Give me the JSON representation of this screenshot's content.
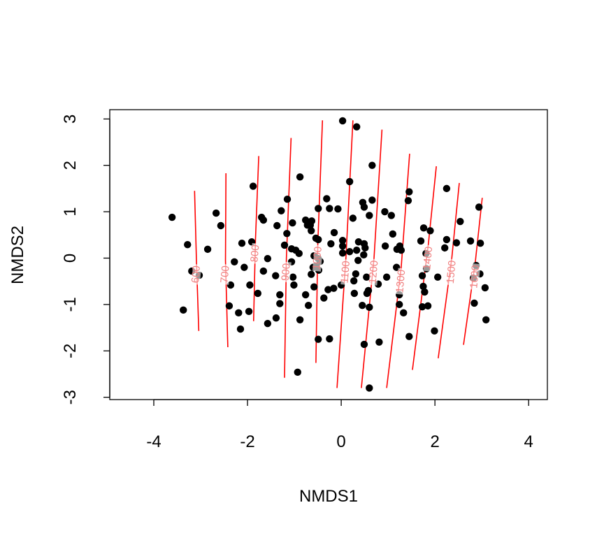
{
  "chart_data": {
    "type": "scatter",
    "xlabel": "NMDS1",
    "ylabel": "NMDS2",
    "xlim": [
      -4.94,
      4.4
    ],
    "ylim": [
      -3.05,
      3.2
    ],
    "xticks": [
      -4,
      -2,
      0,
      2,
      4
    ],
    "yticks": [
      -3,
      -2,
      -1,
      0,
      1,
      2,
      3
    ],
    "color": "#000000",
    "contour_color": "#ff0000",
    "contour_label_color": "#f08080",
    "x": [
      0.03,
      0.33,
      0.66,
      -0.88,
      -1.88,
      0.18,
      2.25,
      1.45,
      -3.61,
      -2.67,
      -2.57,
      -1.7,
      -1.66,
      -1.28,
      -1.15,
      -0.31,
      -0.25,
      -0.49,
      -0.07,
      0.46,
      0.49,
      0.66,
      0.25,
      0.6,
      0.93,
      1.07,
      1.43,
      2.94,
      2.54,
      1.76,
      1.9,
      2.25,
      2.46,
      2.21,
      2.76,
      2.97,
      2.88,
      2.96,
      3.07,
      3.09,
      2.84,
      2.82,
      1.7,
      1.81,
      1.82,
      1.73,
      1.75,
      1.78,
      1.73,
      1.85,
      2.06,
      1.99,
      1.45,
      1.33,
      1.24,
      1.24,
      1.18,
      1.19,
      1.25,
      1.28,
      1.1,
      0.94,
      0.97,
      0.79,
      0.58,
      0.55,
      0.54,
      0.51,
      0.49,
      0.37,
      0.33,
      0.48,
      0.36,
      0.27,
      0.28,
      0.45,
      0.6,
      0.49,
      0.81,
      0.6,
      0.03,
      0.03,
      0.03,
      -0.15,
      -0.22,
      0.0,
      -0.16,
      -0.49,
      -0.58,
      -0.54,
      -0.45,
      -0.6,
      -0.48,
      -0.64,
      -0.58,
      -0.37,
      -0.49,
      -0.54,
      -0.64,
      -0.66,
      -0.76,
      -0.72,
      -0.63,
      -0.97,
      -0.9,
      -1.06,
      -1.04,
      -1.21,
      -1.06,
      -1.03,
      -1.01,
      -0.76,
      -0.7,
      -0.88,
      -0.93,
      -1.31,
      -1.31,
      -1.39,
      -1.57,
      -1.66,
      -1.57,
      -1.4,
      -1.16,
      -1.37,
      -1.91,
      -2.12,
      -2.28,
      -2.07,
      -1.95,
      -1.78,
      -1.97,
      -2.19,
      -2.15,
      -2.39,
      -2.36,
      -3.28,
      -2.85,
      -3.19,
      -3.03,
      -3.37,
      -0.49,
      -0.25,
      -0.28,
      0.18,
      0.31
    ],
    "y": [
      2.96,
      2.83,
      2.0,
      1.75,
      1.55,
      1.65,
      1.5,
      1.43,
      0.88,
      0.97,
      0.7,
      0.88,
      0.82,
      1.02,
      1.27,
      1.28,
      1.07,
      1.07,
      1.06,
      1.2,
      1.1,
      1.25,
      0.86,
      0.92,
      1.0,
      0.92,
      1.24,
      1.1,
      0.79,
      0.65,
      0.59,
      0.4,
      0.33,
      0.22,
      0.37,
      0.32,
      -0.16,
      -0.34,
      -0.64,
      -1.33,
      -0.97,
      -0.43,
      0.37,
      0.1,
      -0.23,
      -0.38,
      -0.61,
      -0.73,
      -1.05,
      -1.03,
      -0.41,
      -1.57,
      -1.69,
      -1.18,
      -0.79,
      -1.0,
      -0.2,
      0.19,
      0.26,
      0.17,
      0.52,
      0.26,
      -0.41,
      -0.56,
      -0.7,
      -0.76,
      -0.41,
      0.22,
      0.31,
      0.35,
      0.17,
      0.07,
      -0.05,
      -0.49,
      -0.76,
      -1.02,
      -1.06,
      -1.86,
      -1.81,
      -2.8,
      0.38,
      0.11,
      0.26,
      0.55,
      0.31,
      -0.58,
      -0.65,
      -0.01,
      0.05,
      -0.17,
      -0.07,
      -0.2,
      -0.26,
      -0.35,
      -0.62,
      -0.86,
      0.4,
      0.43,
      0.59,
      0.71,
      0.82,
      0.71,
      0.8,
      0.17,
      0.1,
      0.2,
      0.76,
      0.28,
      -0.08,
      -0.41,
      -0.58,
      -0.79,
      -1.02,
      -1.33,
      -2.46,
      -0.79,
      -0.98,
      -1.29,
      -1.41,
      -0.28,
      -0.01,
      -0.38,
      0.53,
      0.7,
      0.35,
      0.32,
      -0.08,
      -0.2,
      -0.58,
      -0.76,
      -1.15,
      -1.18,
      -1.53,
      -1.03,
      -0.58,
      0.29,
      0.19,
      -0.28,
      -0.37,
      -1.12,
      -1.75,
      -1.74,
      -0.68,
      0.14,
      -0.34
    ],
    "contours": [
      {
        "level": 600,
        "x": [
          -3.13,
          -3.09,
          -3.04
        ],
        "y": [
          1.45,
          -0.05,
          -1.57
        ]
      },
      {
        "level": 700,
        "x": [
          -2.46,
          -2.47,
          -2.42
        ],
        "y": [
          1.83,
          -0.05,
          -1.92
        ]
      },
      {
        "level": 800,
        "x": [
          -1.76,
          -1.83,
          -1.87
        ],
        "y": [
          2.2,
          0.4,
          -1.36
        ]
      },
      {
        "level": 900,
        "x": [
          -1.07,
          -1.17,
          -1.21
        ],
        "y": [
          2.59,
          0.0,
          -2.58
        ]
      },
      {
        "level": 1000,
        "x": [
          -0.4,
          -0.5,
          -0.54
        ],
        "y": [
          2.97,
          0.3,
          -2.26
        ]
      },
      {
        "level": 1100,
        "x": [
          0.25,
          0.1,
          -0.09
        ],
        "y": [
          2.97,
          0.0,
          -2.8
        ]
      },
      {
        "level": 1200,
        "x": [
          0.87,
          0.7,
          0.43
        ],
        "y": [
          2.77,
          0.0,
          -2.8
        ]
      },
      {
        "level": 1300,
        "x": [
          1.46,
          1.28,
          0.97
        ],
        "y": [
          2.25,
          -0.2,
          -2.8
        ]
      },
      {
        "level": 1400,
        "x": [
          2.03,
          1.86,
          1.52
        ],
        "y": [
          1.98,
          0.3,
          -2.41
        ]
      },
      {
        "level": 1500,
        "x": [
          2.52,
          2.36,
          2.07
        ],
        "y": [
          1.62,
          0.0,
          -2.16
        ]
      },
      {
        "level": 1600,
        "x": [
          3.01,
          2.86,
          2.61
        ],
        "y": [
          1.3,
          -0.1,
          -1.87
        ]
      }
    ]
  }
}
